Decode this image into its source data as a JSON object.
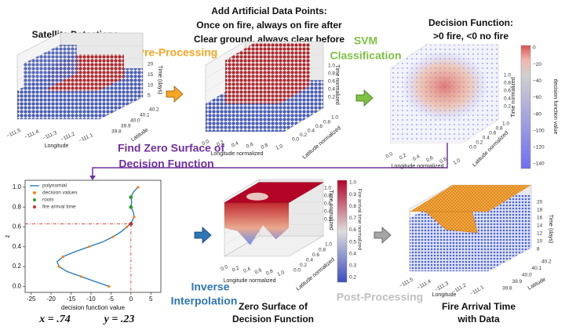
{
  "steps": {
    "pre_processing": "Pre-Processing",
    "svm": [
      "SVM",
      "Classification"
    ],
    "find_zero": [
      "Find Zero Surface of",
      "Decision Function"
    ],
    "inverse": [
      "Inverse",
      "Interpolation"
    ],
    "post_processing": "Post-Processing"
  },
  "panels": {
    "satellite": {
      "title": [
        "Satellite Detections"
      ],
      "z_label": "Time (days)",
      "z_ticks": [
        "20",
        "15",
        "10",
        "5"
      ],
      "lat_label": "Latitude",
      "lat_ticks": [
        "40.2",
        "40.1",
        "40.0",
        "39.9",
        "39.8"
      ],
      "lon_label": "Longitude",
      "lon_ticks": [
        "−111.5",
        "−111.4",
        "−111.3",
        "−111.2",
        "−111.1"
      ]
    },
    "artificial": {
      "title": [
        "Add Artificial Data Points:",
        "Once on fire, always on fire after",
        "Clear ground, always clear before"
      ],
      "z_label": "Time normalized",
      "z_ticks": [
        "1.0",
        "0.8",
        "0.6",
        "0.4",
        "0.2"
      ],
      "lat_label": "Latitude normalized",
      "lat_ticks": [
        "1.0",
        "0.8",
        "0.6",
        "0.4",
        "0.2",
        "0.0"
      ],
      "lon_label": "Longitude normalized",
      "lon_ticks": [
        "0.0",
        "0.2",
        "0.4",
        "0.6",
        "0.8",
        "1.0"
      ]
    },
    "decision": {
      "title": [
        "Decision Function:",
        ">0 fire, <0 no fire"
      ],
      "z_label": "Time normalized",
      "z_ticks": [
        "1.0",
        "0.8",
        "0.6",
        "0.4",
        "0.2"
      ],
      "lat_label": "Latitude normalized",
      "lat_ticks": [
        "1.0",
        "0.8",
        "0.6",
        "0.4",
        "0.2",
        "0.0"
      ],
      "lon_label": "Longitude normalized",
      "lon_ticks": [
        "0.0",
        "0.2",
        "0.4",
        "0.6",
        "0.8",
        "1.0"
      ],
      "colorbar_label": "decision function value",
      "colorbar_ticks": [
        "0",
        "−20",
        "−40",
        "−60",
        "−80",
        "−100",
        "−120",
        "−140"
      ]
    },
    "zero_surface": {
      "title": [
        "Zero Surface of",
        "Decision Function"
      ],
      "z_label": "Time normalized",
      "z_ticks": [
        "1.0",
        "0.8",
        "0.6",
        "0.4",
        "0.2"
      ],
      "lat_label": "Latitude normalized",
      "lat_ticks": [
        "1.0",
        "0.8",
        "0.6",
        "0.4",
        "0.2",
        "0.0"
      ],
      "lon_label": "Longitude normalized",
      "lon_ticks": [
        "0.0",
        "0.2",
        "0.4",
        "0.6",
        "0.8",
        "1.0"
      ],
      "colorbar_label": "Fire arrival time normalized",
      "colorbar_ticks": [
        "1.0",
        "0.9",
        "0.8",
        "0.7",
        "0.6",
        "0.5",
        "0.4",
        "0.3",
        "0.2"
      ]
    },
    "fire_arrival": {
      "title": [
        "Fire Arrival Time",
        "with Data"
      ],
      "z_label": "Time (days)",
      "z_ticks": [
        "20",
        "18",
        "16",
        "14",
        "12",
        "10",
        "8"
      ],
      "lat_label": "Latitude",
      "lat_ticks": [
        "40.2",
        "40.1",
        "40.0",
        "39.9",
        "39.8"
      ],
      "lon_label": "Longitude",
      "lon_ticks": [
        "−111.5",
        "−111.4",
        "−111.3",
        "−111.2",
        "−111.1"
      ]
    }
  },
  "plot": {
    "type": "line",
    "xlabel": "decision function value",
    "ylabel": "z",
    "xlim": [
      -26.5,
      7.5
    ],
    "ylim": [
      -0.06,
      1.07
    ],
    "xticks": [
      -25,
      -20,
      -15,
      -10,
      -5,
      0,
      5
    ],
    "yticks": [
      {
        "value": 0,
        "label": "0.0"
      },
      0.2,
      0.4,
      0.6,
      0.8,
      {
        "value": 1,
        "label": "1.0"
      }
    ],
    "series": [
      {
        "name": "polynomial",
        "color": "#1f77b4",
        "x": [
          -5.5,
          -9,
          -12.5,
          -16,
          -18,
          -18.5,
          -17,
          -14,
          -10.5,
          -7,
          -4.5,
          -2.5,
          -1,
          0.2,
          0.8,
          0.6,
          0,
          0.2,
          0,
          0.6,
          1.8
        ],
        "y": [
          0,
          0.05,
          0.1,
          0.15,
          0.2,
          0.25,
          0.3,
          0.35,
          0.4,
          0.45,
          0.5,
          0.55,
          0.6,
          0.65,
          0.7,
          0.75,
          0.8,
          0.85,
          0.9,
          0.95,
          1
        ]
      },
      {
        "name": "decision values",
        "color": "#ff7f0e",
        "x": [
          -5.5,
          -12.5,
          -18,
          -17,
          -10.5,
          -4.5,
          -1,
          0.8,
          0,
          0,
          1.8
        ],
        "y": [
          0,
          0.1,
          0.2,
          0.3,
          0.4,
          0.5,
          0.6,
          0.7,
          0.8,
          0.9,
          1
        ]
      },
      {
        "name": "roots",
        "color": "#2ca02c",
        "x": [
          0,
          0,
          0
        ],
        "y": [
          0.63,
          0.8,
          0.9
        ]
      },
      {
        "name": "fire arrival time",
        "color": "#d62728",
        "x": [
          0
        ],
        "y": [
          0.63
        ]
      }
    ],
    "annotations": [
      "x = .74",
      "y = .23"
    ]
  }
}
